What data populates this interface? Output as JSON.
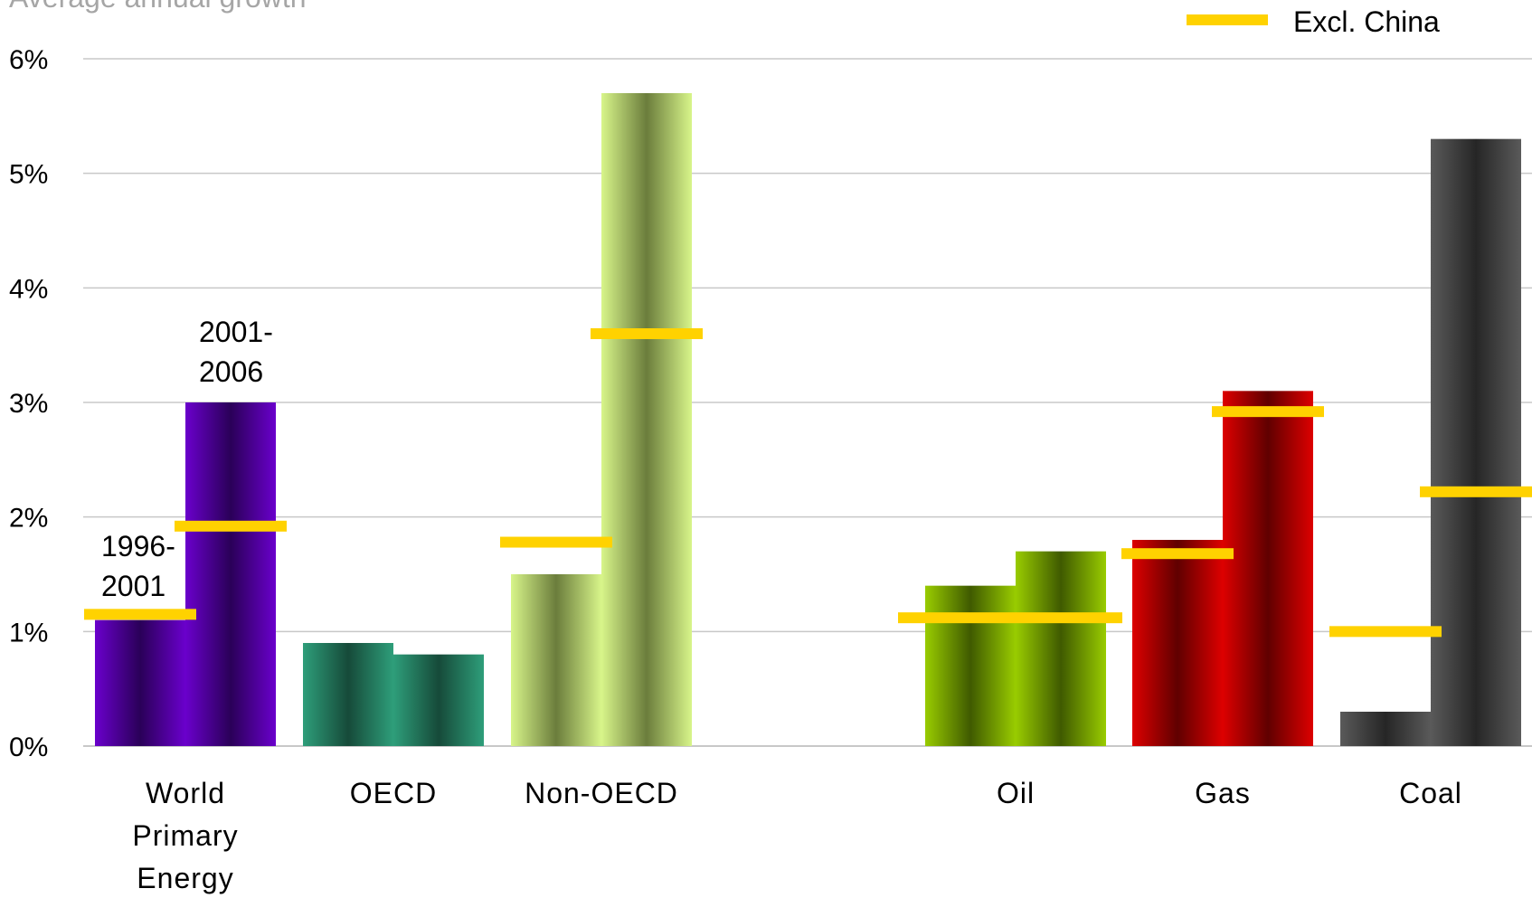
{
  "chart_data": {
    "type": "bar",
    "title": "",
    "ylabel": "Average annual growth",
    "xlabel": "",
    "ylim": [
      0,
      6
    ],
    "yticks": [
      "0%",
      "1%",
      "2%",
      "3%",
      "4%",
      "5%",
      "6%"
    ],
    "grid": true,
    "categories": [
      {
        "lines": [
          "World",
          "Primary",
          "Energy"
        ]
      },
      {
        "lines": [
          "OECD"
        ]
      },
      {
        "lines": [
          "Non-OECD"
        ]
      },
      {
        "lines": [
          "Oil"
        ]
      },
      {
        "lines": [
          "Gas"
        ]
      },
      {
        "lines": [
          "Coal"
        ]
      }
    ],
    "series": [
      {
        "values": [
          1.1,
          0.9,
          1.5,
          1.4,
          1.8,
          0.3
        ]
      },
      {
        "values": [
          3.0,
          0.8,
          5.7,
          1.7,
          3.1,
          5.3
        ]
      }
    ],
    "excl_china": {
      "name": "Excl. China",
      "color": "#FFD200",
      "markers": [
        {
          "category": 0,
          "series": 0,
          "value": 1.15
        },
        {
          "category": 0,
          "series": 1,
          "value": 1.92
        },
        {
          "category": 2,
          "series": 0,
          "value": 1.78
        },
        {
          "category": 2,
          "series": 1,
          "value": 3.6
        },
        {
          "category": 3,
          "series": "both",
          "value": 1.12
        },
        {
          "category": 4,
          "series": 0,
          "value": 1.68
        },
        {
          "category": 4,
          "series": 1,
          "value": 2.92
        },
        {
          "category": 5,
          "series": 0,
          "value": 1.0
        },
        {
          "category": 5,
          "series": 1,
          "value": 2.22
        }
      ]
    },
    "annotations": [
      {
        "lines": [
          "1996-",
          "2001"
        ],
        "category": 0,
        "series": 0
      },
      {
        "lines": [
          "2001-",
          "2006"
        ],
        "category": 0,
        "series": 1
      }
    ],
    "legend": {
      "position": "top-right"
    },
    "colors": {
      "world": "#6a00cc",
      "oecd": "#2e9e7a",
      "non_oecd": "#d8f58a",
      "oil": "#99cc00",
      "gas": "#dd0000",
      "coal": "#5a5a5a",
      "grid": "#c8c8c8"
    }
  }
}
